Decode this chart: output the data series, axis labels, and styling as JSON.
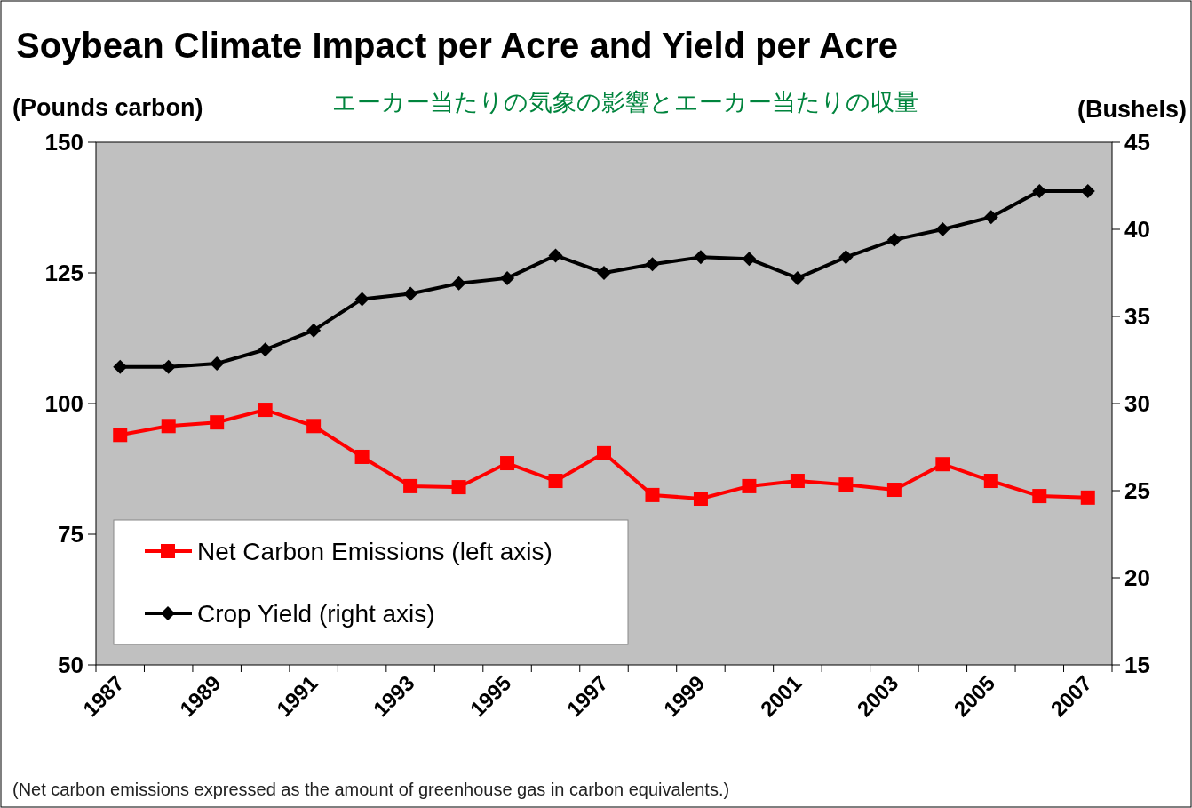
{
  "chart_data": {
    "type": "line",
    "title": "Soybean Climate Impact per Acre and Yield per Acre",
    "subtitle": "エーカー当たりの気象の影響とエーカー当たりの収量",
    "ylabel": "(Pounds carbon)",
    "y2label": "(Bushels)",
    "categories": [
      "1987",
      null,
      "1989",
      null,
      "1991",
      null,
      "1993",
      null,
      "1995",
      null,
      "1997",
      null,
      "1999",
      null,
      "2001",
      null,
      "2003",
      null,
      "2005",
      null,
      "2007"
    ],
    "series": [
      {
        "name": "Net Carbon Emissions (left axis)",
        "color": "#ff0000",
        "marker": "square",
        "values": [
          94.0,
          95.7,
          96.4,
          98.8,
          95.7,
          89.8,
          84.2,
          84.0,
          88.6,
          85.2,
          90.5,
          82.5,
          81.8,
          84.2,
          85.2,
          84.5,
          83.5,
          88.4,
          85.2,
          82.3,
          82.0
        ]
      },
      {
        "name": "Crop Yield (right axis)",
        "color": "#000000",
        "marker": "diamond",
        "axis": "y2",
        "values": [
          32.1,
          32.1,
          32.3,
          33.1,
          34.2,
          36.0,
          36.3,
          36.9,
          37.2,
          38.5,
          37.5,
          38.0,
          38.4,
          38.3,
          37.2,
          38.4,
          39.4,
          40.0,
          40.7,
          42.2,
          42.2
        ]
      }
    ],
    "ylim": [
      50,
      150
    ],
    "yticks": [
      50,
      75,
      100,
      125,
      150
    ],
    "y2lim": [
      15,
      45
    ],
    "y2ticks": [
      15,
      20,
      25,
      30,
      35,
      40,
      45
    ],
    "legend": "bottom left",
    "line_style": "solid",
    "annotations": [
      "(Net carbon emissions expressed as the amount of greenhouse gas in carbon equivalents.)"
    ]
  }
}
